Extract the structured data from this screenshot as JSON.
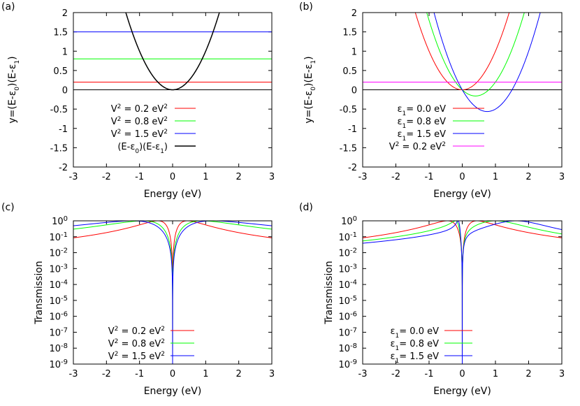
{
  "chart_data": [
    {
      "id": "a",
      "type": "line",
      "panel_label": "(a)",
      "xlabel": "Energy (eV)",
      "ylabel": "y=(E-ε0)(E-ε1)",
      "xlim": [
        -3,
        3
      ],
      "ylim": [
        -2,
        2
      ],
      "xticks": [
        "-3",
        "-2",
        "-1",
        "0",
        "1",
        "2",
        "3"
      ],
      "yticks": [
        "2",
        "1.5",
        "1",
        "0.5",
        "0",
        "-0.5",
        "-1",
        "-1.5",
        "-2"
      ],
      "legend_position": "bottom-left",
      "series": [
        {
          "name": "V2 = 0.2 eV2",
          "label_text": "V² = 0.2 eV²",
          "color": "#ff0000",
          "kind": "hline",
          "y": 0.2
        },
        {
          "name": "V2 = 0.8 eV2",
          "label_text": "V² = 0.8 eV²",
          "color": "#00ff00",
          "kind": "hline",
          "y": 0.8
        },
        {
          "name": "V2 = 1.5 eV2",
          "label_text": "V² = 1.5 eV²",
          "color": "#0000ff",
          "kind": "hline",
          "y": 1.5
        },
        {
          "name": "(E-ε0)(E-ε1)",
          "label_text": "(E-ε0)(E-ε1)",
          "color": "#000000",
          "kind": "parabola",
          "e0": 0.0,
          "e1": 0.0
        }
      ],
      "zero_line": true
    },
    {
      "id": "b",
      "type": "line",
      "panel_label": "(b)",
      "xlabel": "Energy (eV)",
      "ylabel": "y=(E-ε0)(E-ε1)",
      "xlim": [
        -3,
        3
      ],
      "ylim": [
        -2,
        2
      ],
      "xticks": [
        "-3",
        "-2",
        "-1",
        "0",
        "1",
        "2",
        "3"
      ],
      "yticks": [
        "2",
        "1.5",
        "1",
        "0.5",
        "0",
        "-0.5",
        "-1",
        "-1.5",
        "-2"
      ],
      "legend_position": "bottom-left",
      "series": [
        {
          "name": "ε1= 0.0 eV",
          "label_text": "ε1= 0.0 eV",
          "color": "#ff0000",
          "kind": "parabola",
          "e0": 0.0,
          "e1": 0.0
        },
        {
          "name": "ε1= 0.8 eV",
          "label_text": "ε1= 0.8 eV",
          "color": "#00ff00",
          "kind": "parabola",
          "e0": 0.0,
          "e1": 0.8
        },
        {
          "name": "ε1= 1.5 eV",
          "label_text": "ε1= 1.5 eV",
          "color": "#0000ff",
          "kind": "parabola",
          "e0": 0.0,
          "e1": 1.5
        },
        {
          "name": "V2 = 0.2 eV2",
          "label_text": "V² = 0.2 eV²",
          "color": "#ff00ff",
          "kind": "hline",
          "y": 0.2
        }
      ],
      "zero_line": true
    },
    {
      "id": "c",
      "type": "line",
      "panel_label": "(c)",
      "xlabel": "Energy (eV)",
      "ylabel": "Transmission",
      "xlim": [
        -3,
        3
      ],
      "ylim_log10": [
        -9,
        0
      ],
      "yscale": "log",
      "xticks": [
        "-3",
        "-2",
        "-1",
        "0",
        "1",
        "2",
        "3"
      ],
      "yticks": [
        "10^0",
        "10^-1",
        "10^-2",
        "10^-3",
        "10^-4",
        "10^-5",
        "10^-6",
        "10^-7",
        "10^-8",
        "10^-9"
      ],
      "legend_position": "bottom-right",
      "series": [
        {
          "name": "V2 = 0.2 eV2",
          "label_text": "V² = 0.2 eV²",
          "color": "#ff0000",
          "V2": 0.2,
          "e0": 0.0,
          "e1": 0.0,
          "peaks_eV": [
            -0.447,
            0.447
          ]
        },
        {
          "name": "V2 = 0.8 eV2",
          "label_text": "V² = 0.8 eV²",
          "color": "#00ff00",
          "V2": 0.8,
          "e0": 0.0,
          "e1": 0.0,
          "peaks_eV": [
            -0.894,
            0.894
          ]
        },
        {
          "name": "V2 = 1.5 eV2",
          "label_text": "V² = 1.5 eV²",
          "color": "#0000ff",
          "V2": 1.5,
          "e0": 0.0,
          "e1": 0.0,
          "peaks_eV": [
            -1.225,
            1.225
          ]
        }
      ]
    },
    {
      "id": "d",
      "type": "line",
      "panel_label": "(d)",
      "xlabel": "Energy (eV)",
      "ylabel": "Transmission",
      "xlim": [
        -3,
        3
      ],
      "ylim_log10": [
        -9,
        0
      ],
      "yscale": "log",
      "xticks": [
        "-3",
        "-2",
        "-1",
        "0",
        "1",
        "2",
        "3"
      ],
      "yticks": [
        "10^0",
        "10^-1",
        "10^-2",
        "10^-3",
        "10^-4",
        "10^-5",
        "10^-6",
        "10^-7",
        "10^-8",
        "10^-9"
      ],
      "legend_position": "bottom-left",
      "series": [
        {
          "name": "ε1= 0.0 eV",
          "label_text": "ε1= 0.0 eV",
          "color": "#ff0000",
          "V2": 0.2,
          "e0": 0.0,
          "e1": 0.0
        },
        {
          "name": "ε1= 0.8 eV",
          "label_text": "ε1= 0.8 eV",
          "color": "#00ff00",
          "V2": 0.2,
          "e0": 0.0,
          "e1": 0.8
        },
        {
          "name": "ε1= 1.5 eV",
          "label_text": "ε1= 1.5 eV",
          "color": "#0000ff",
          "V2": 0.2,
          "e0": 0.0,
          "e1": 1.5
        }
      ]
    }
  ]
}
